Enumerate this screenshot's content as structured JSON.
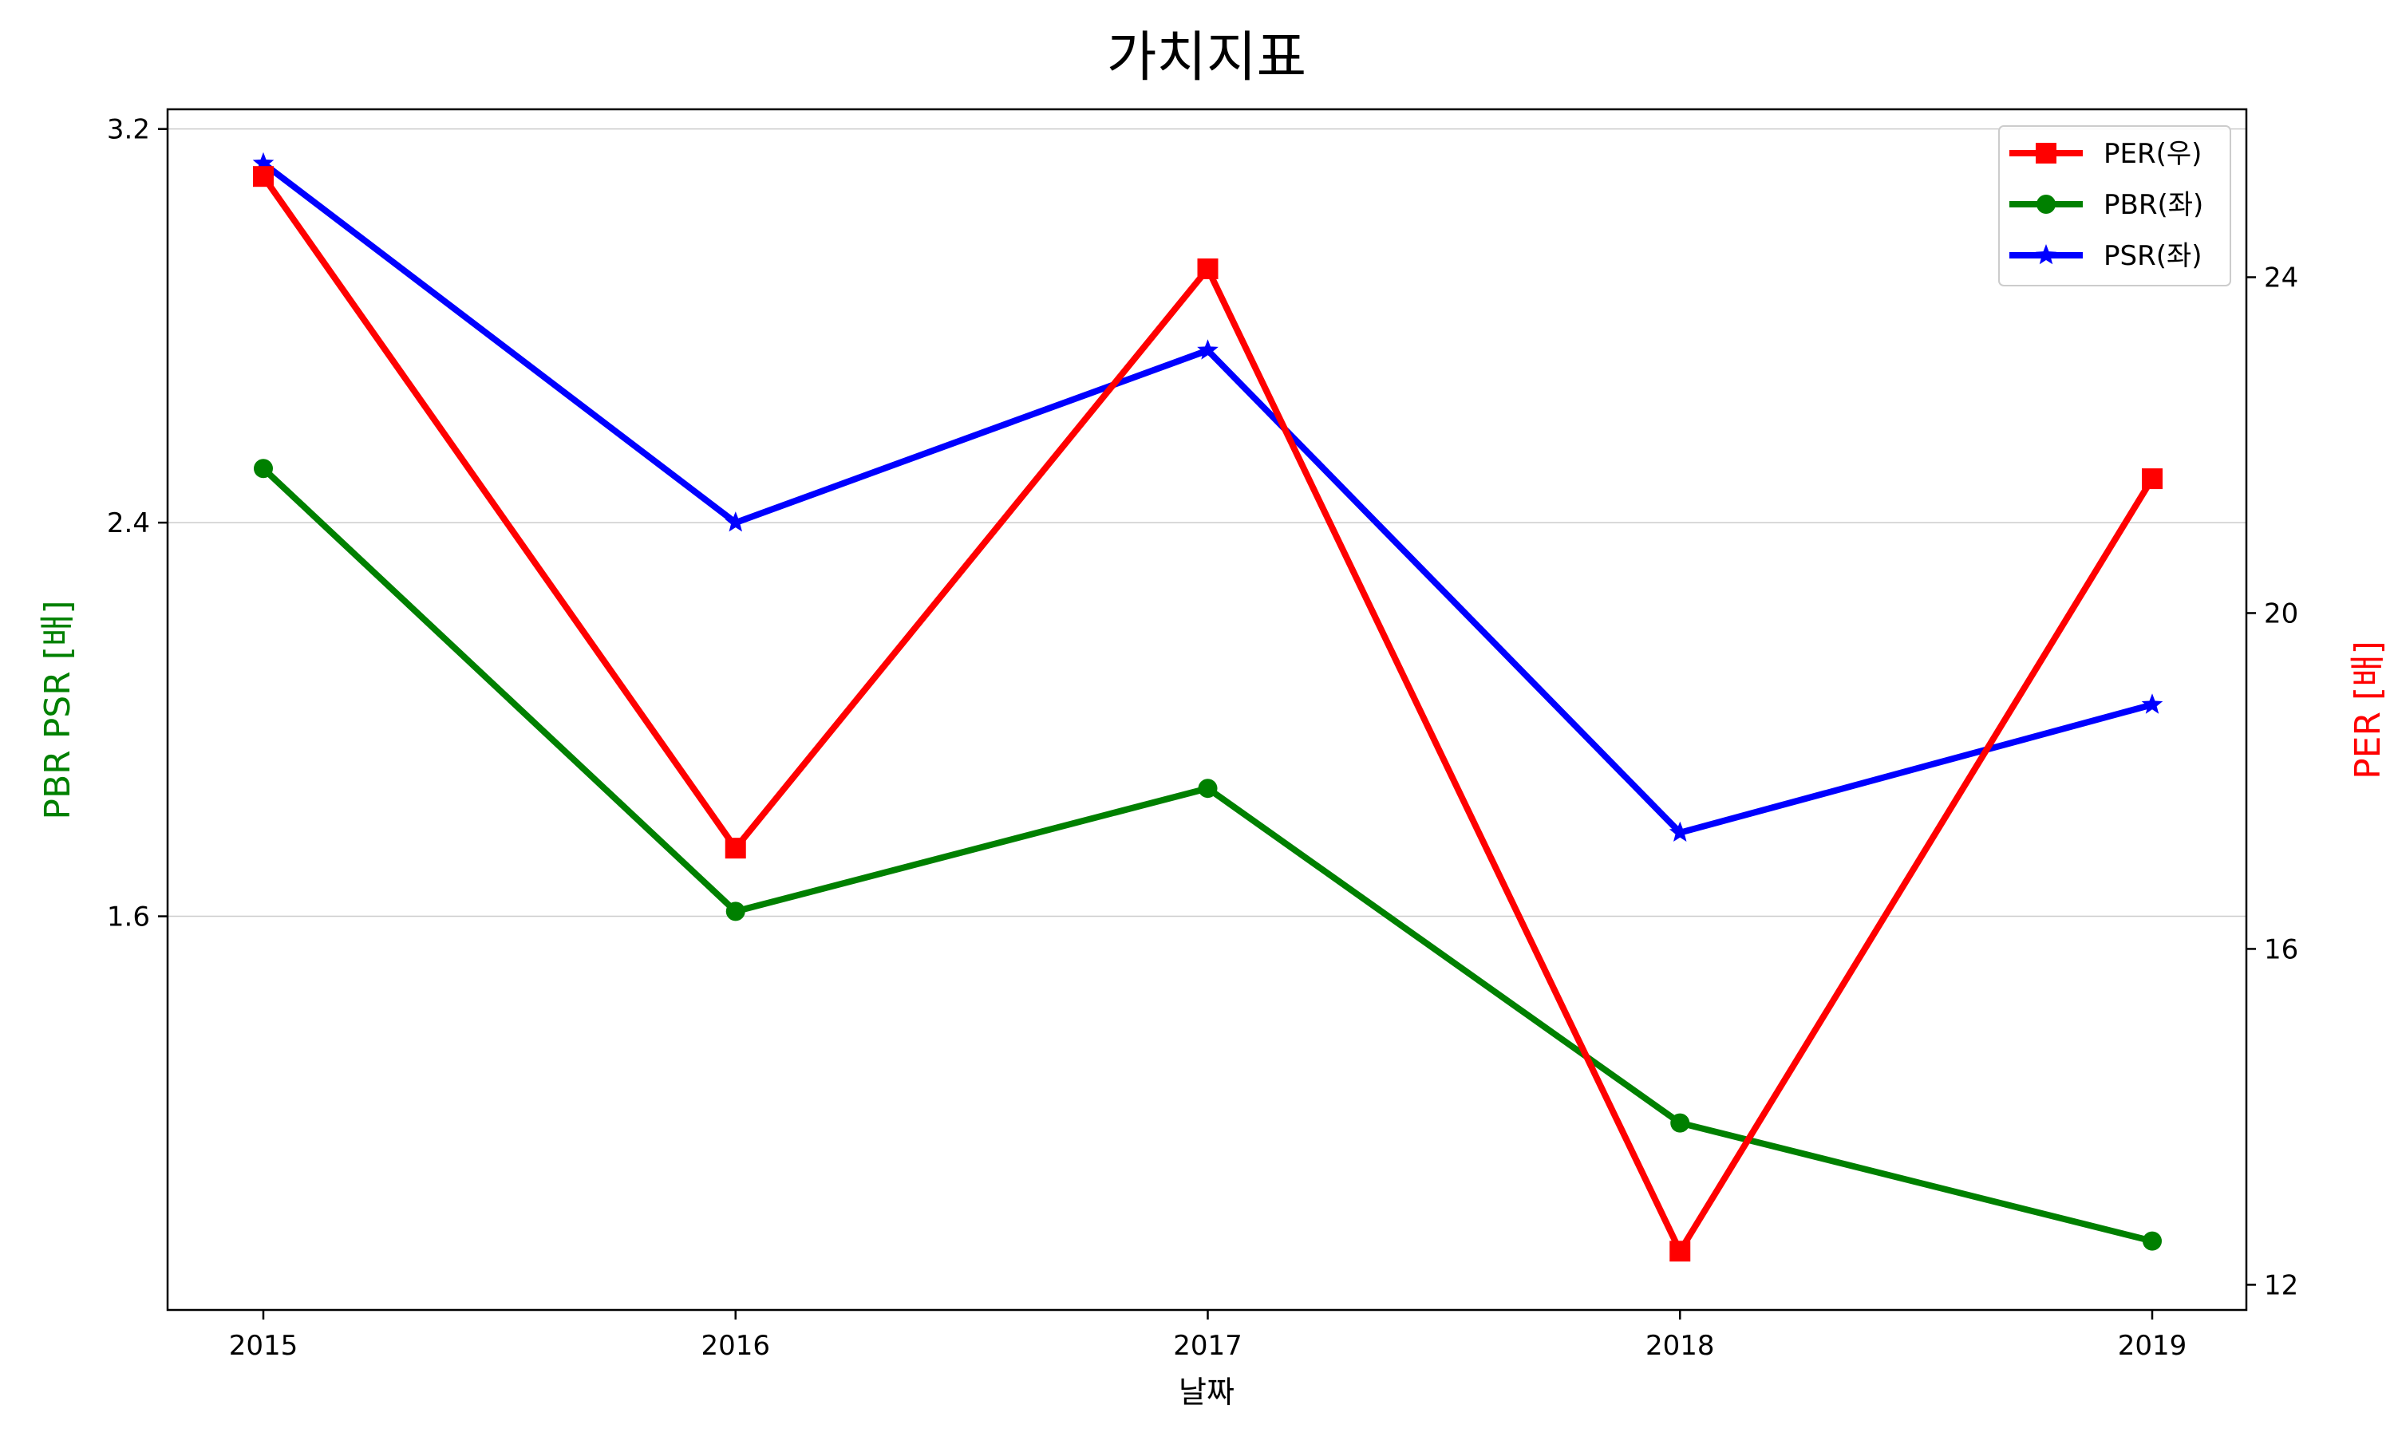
{
  "chart_data": {
    "type": "line",
    "title": "가치지표",
    "xlabel": "날짜",
    "ylabel_left": "PBR PSR [배]",
    "ylabel_right": "PER [배]",
    "categories": [
      "2015",
      "2016",
      "2017",
      "2018",
      "2019"
    ],
    "ylim_left": [
      0.8,
      3.24
    ],
    "ylim_right": [
      11.7,
      26.0
    ],
    "yticks_left": [
      "1.6",
      "2.4",
      "3.2"
    ],
    "yticks_right": [
      "12",
      "16",
      "20",
      "24"
    ],
    "grid": "horizontal (left axis)",
    "legend_position": "top-right",
    "series": [
      {
        "name": "PER(우)",
        "axis": "right",
        "color": "#ff0000",
        "marker": "square",
        "values": [
          25.2,
          17.2,
          24.1,
          12.4,
          21.6
        ]
      },
      {
        "name": "PBR(좌)",
        "axis": "left",
        "color": "#008000",
        "marker": "circle",
        "values": [
          2.51,
          1.61,
          1.86,
          1.18,
          0.94
        ]
      },
      {
        "name": "PSR(좌)",
        "axis": "left",
        "color": "#0000ff",
        "marker": "star",
        "values": [
          3.13,
          2.4,
          2.75,
          1.77,
          2.03
        ]
      }
    ]
  }
}
